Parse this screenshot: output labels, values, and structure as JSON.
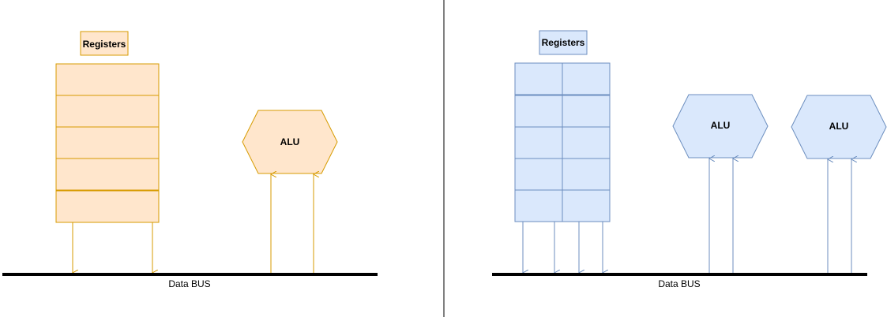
{
  "colors": {
    "orange_fill": "#ffe6cc",
    "orange_stroke": "#d79b00",
    "blue_fill": "#dae8fc",
    "blue_stroke": "#6c8ebf",
    "bus": "#000000"
  },
  "left_diagram": {
    "registers_label": "Registers",
    "alu_label": "ALU",
    "bus_label": "Data BUS",
    "register_rows": 5,
    "register_columns": 1
  },
  "right_diagram": {
    "registers_label": "Registers",
    "alu_labels": [
      "ALU",
      "ALU"
    ],
    "bus_label": "Data BUS",
    "register_rows": 5,
    "register_columns": 2
  }
}
